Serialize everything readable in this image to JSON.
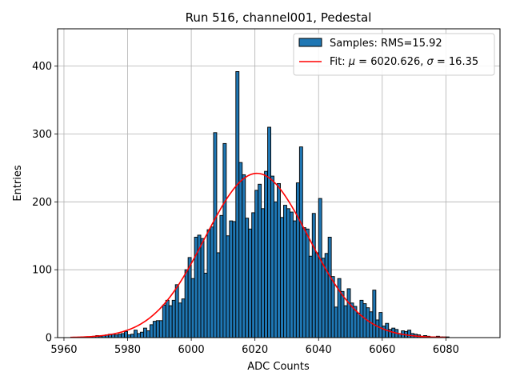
{
  "chart_data": {
    "type": "bar",
    "title": "Run 516, channel001, Pedestal",
    "xlabel": "ADC Counts",
    "ylabel": "Entries",
    "xlim": [
      5958,
      6097
    ],
    "ylim": [
      0,
      455
    ],
    "xticks": [
      5960,
      5980,
      6000,
      6020,
      6040,
      6060,
      6080
    ],
    "yticks": [
      0,
      100,
      200,
      300,
      400
    ],
    "grid": true,
    "legend_position": "top-right",
    "histogram": {
      "name": "Samples: RMS=15.92",
      "color": "#1f77b4",
      "edgecolor": "#000000",
      "bin_width": 1,
      "bin_start": 5966,
      "counts": [
        1,
        1,
        1,
        2,
        3,
        2,
        3,
        4,
        5,
        5,
        4,
        5,
        6,
        9,
        4,
        5,
        11,
        6,
        8,
        14,
        10,
        19,
        24,
        25,
        25,
        48,
        55,
        47,
        55,
        78,
        51,
        57,
        100,
        118,
        87,
        148,
        151,
        146,
        95,
        159,
        163,
        302,
        125,
        180,
        286,
        150,
        172,
        171,
        392,
        258,
        240,
        176,
        160,
        184,
        217,
        226,
        190,
        245,
        310,
        238,
        200,
        227,
        177,
        195,
        190,
        185,
        172,
        228,
        281,
        162,
        160,
        120,
        183,
        125,
        205,
        117,
        124,
        148,
        90,
        45,
        87,
        68,
        47,
        72,
        51,
        46,
        36,
        55,
        50,
        44,
        38,
        70,
        26,
        37,
        17,
        21,
        12,
        14,
        12,
        6,
        10,
        9,
        11,
        6,
        5,
        4,
        2,
        3,
        2,
        1,
        1,
        2,
        1,
        1,
        1
      ]
    },
    "fit": {
      "label_parts": [
        "Fit: ",
        "μ",
        " = 6020.626, ",
        "σ",
        " = 16.35"
      ],
      "mu": 6020.626,
      "sigma": 16.35,
      "amplitude": 242,
      "x_range": [
        5962,
        6080
      ],
      "color": "#ff0000"
    }
  }
}
